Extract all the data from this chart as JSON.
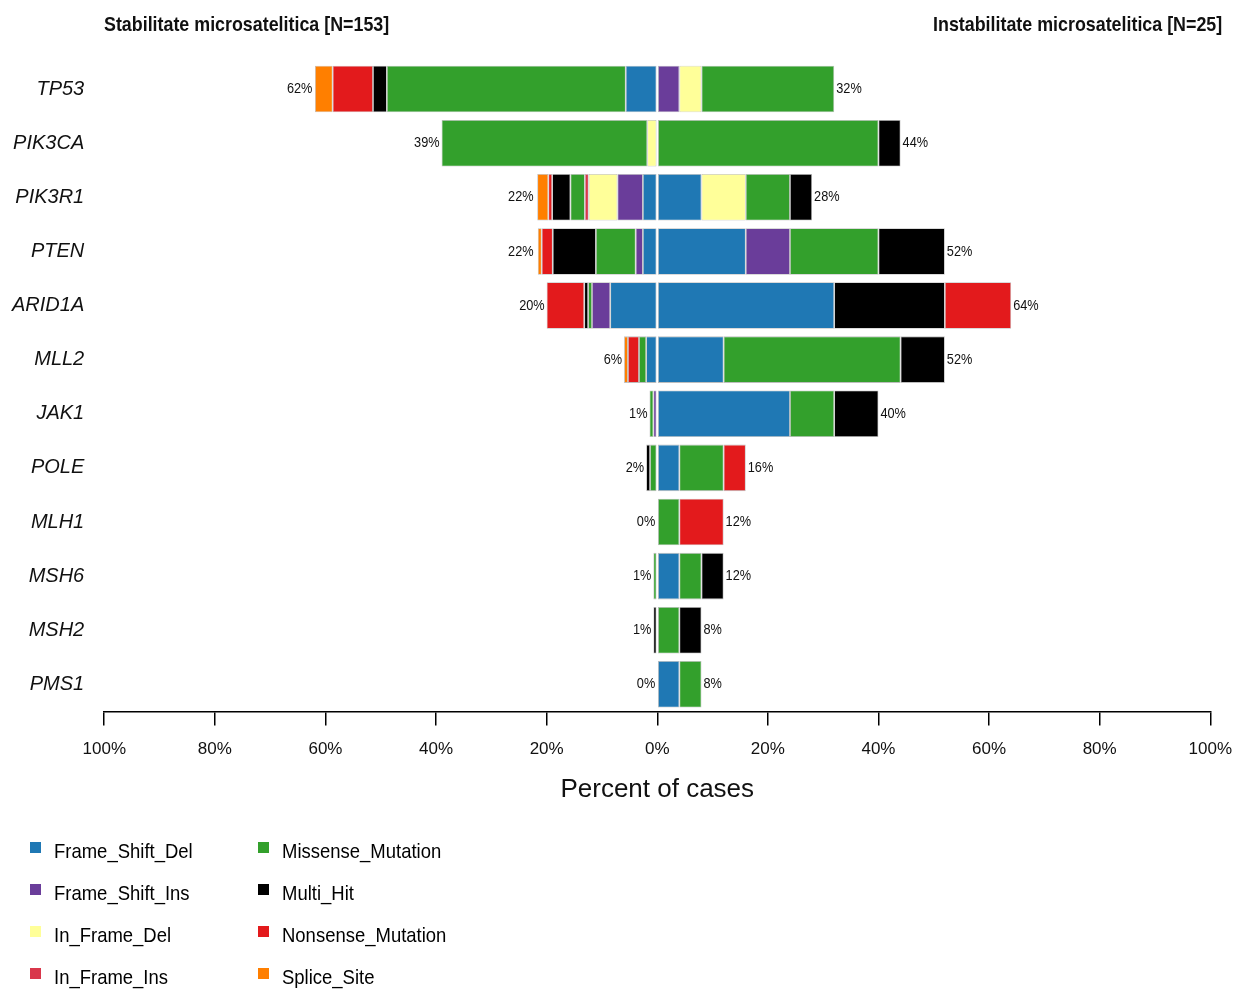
{
  "chart_data": {
    "type": "bar",
    "orientation": "horizontal",
    "stacked": true,
    "title": "Stabilitate microsatelitica [N=153]",
    "subtitle": "Instabilitate microsatelitica [N=25]",
    "xlabel": "Percent of cases",
    "categories": [
      "TP53",
      "PIK3CA",
      "PIK3R1",
      "PTEN",
      "ARID1A",
      "MLL2",
      "JAK1",
      "POLE",
      "MLH1",
      "MSH6",
      "MSH2",
      "PMS1"
    ],
    "xlim": [
      -100,
      100
    ],
    "xticks": [
      {
        "value": -100,
        "label": "100%"
      },
      {
        "value": -80,
        "label": "80%"
      },
      {
        "value": -60,
        "label": "60%"
      },
      {
        "value": -40,
        "label": "40%"
      },
      {
        "value": -20,
        "label": "20%"
      },
      {
        "value": 0,
        "label": "0%"
      },
      {
        "value": 20,
        "label": "20%"
      },
      {
        "value": 40,
        "label": "40%"
      },
      {
        "value": 60,
        "label": "60%"
      },
      {
        "value": 80,
        "label": "80%"
      },
      {
        "value": 100,
        "label": "100%"
      }
    ],
    "grid": false,
    "legend": "bottom left",
    "marker": "square",
    "series": [
      {
        "name": "Frame_Shift_Del",
        "color": "#1f78b4",
        "values": [
          -5.7,
          null,
          -2.6,
          -2.6,
          -8.5,
          -2.0,
          null,
          null,
          null,
          null,
          null,
          null
        ]
      },
      {
        "name": "Frame_Shift_Ins",
        "color": "#6a3d9a",
        "values": [
          null,
          null,
          -4.6,
          -1.3,
          -3.3,
          null,
          -0.7,
          null,
          null,
          null,
          null,
          null
        ]
      },
      {
        "name": "In_Frame_Del",
        "color": "#ffff99",
        "values": [
          null,
          -1.8,
          -5.2,
          null,
          null,
          null,
          null,
          null,
          null,
          null,
          null,
          null
        ]
      },
      {
        "name": "In_Frame_Ins",
        "color": "#d9374b",
        "values": [
          null,
          null,
          -0.7,
          null,
          null,
          null,
          null,
          null,
          null,
          null,
          null,
          null
        ]
      },
      {
        "name": "Missense_Mutation",
        "color": "#33a02c",
        "values": [
          -43.2,
          -37.2,
          -2.6,
          -7.2,
          -0.7,
          -1.3,
          -0.7,
          -1.3,
          null,
          -0.7,
          null,
          null
        ]
      },
      {
        "name": "Multi_Hit",
        "color": "#000000",
        "values": [
          -2.5,
          null,
          -3.3,
          -7.8,
          -0.7,
          null,
          null,
          -0.7,
          null,
          null,
          -0.7,
          null
        ]
      },
      {
        "name": "Nonsense_Mutation",
        "color": "#e31a1c",
        "values": [
          -7.3,
          null,
          -0.7,
          -2.0,
          -6.8,
          -2.0,
          null,
          null,
          null,
          null,
          null,
          null
        ]
      },
      {
        "name": "Splice_Site",
        "color": "#ff7f00",
        "values": [
          -3.2,
          null,
          -2.0,
          -0.7,
          null,
          -0.7,
          null,
          null,
          null,
          null,
          null,
          null
        ]
      },
      {
        "color": "#1f78b4",
        "values": [
          null,
          null,
          8,
          16,
          32,
          12,
          24,
          4,
          null,
          4,
          null,
          4
        ]
      },
      {
        "color": "#6a3d9a",
        "values": [
          4,
          null,
          null,
          8,
          null,
          null,
          null,
          null,
          null,
          null,
          null,
          null
        ]
      },
      {
        "color": "#ffff99",
        "values": [
          4,
          null,
          8,
          null,
          null,
          null,
          null,
          null,
          null,
          null,
          null,
          null
        ]
      },
      {
        "color": "#33a02c",
        "values": [
          24,
          40,
          8,
          16,
          null,
          32,
          8,
          8,
          4,
          4,
          4,
          4
        ]
      },
      {
        "color": "#000000",
        "values": [
          null,
          4,
          4,
          12,
          20,
          8,
          8,
          null,
          null,
          4,
          4,
          null
        ]
      },
      {
        "color": "#e31a1c",
        "values": [
          null,
          null,
          null,
          null,
          12,
          null,
          null,
          4,
          8,
          null,
          null,
          null
        ]
      }
    ],
    "annotations": [
      {
        "text": "62%",
        "x": -62,
        "y": "TP53"
      },
      {
        "text": "32%",
        "x": 32,
        "y": "TP53"
      },
      {
        "text": "39%",
        "x": -39,
        "y": "PIK3CA"
      },
      {
        "text": "44%",
        "x": 44,
        "y": "PIK3CA"
      },
      {
        "text": "22%",
        "x": -22,
        "y": "PIK3R1"
      },
      {
        "text": "28%",
        "x": 28,
        "y": "PIK3R1"
      },
      {
        "text": "22%",
        "x": -22,
        "y": "PTEN"
      },
      {
        "text": "52%",
        "x": 52,
        "y": "PTEN"
      },
      {
        "text": "20%",
        "x": -20,
        "y": "ARID1A"
      },
      {
        "text": "64%",
        "x": 64,
        "y": "ARID1A"
      },
      {
        "text": "6%",
        "x": -6,
        "y": "MLL2"
      },
      {
        "text": "52%",
        "x": 52,
        "y": "MLL2"
      },
      {
        "text": "1%",
        "x": -1.4,
        "y": "JAK1"
      },
      {
        "text": "40%",
        "x": 40,
        "y": "JAK1"
      },
      {
        "text": "2%",
        "x": -2.0,
        "y": "POLE"
      },
      {
        "text": "16%",
        "x": 16,
        "y": "POLE"
      },
      {
        "text": "0%",
        "x": 0,
        "y": "MLH1"
      },
      {
        "text": "12%",
        "x": 12,
        "y": "MLH1"
      },
      {
        "text": "1%",
        "x": -0.7,
        "y": "MSH6"
      },
      {
        "text": "12%",
        "x": 12,
        "y": "MSH6"
      },
      {
        "text": "1%",
        "x": -0.7,
        "y": "MSH2"
      },
      {
        "text": "8%",
        "x": 8,
        "y": "MSH2"
      },
      {
        "text": "0%",
        "x": 0,
        "y": "PMS1"
      },
      {
        "text": "8%",
        "x": 8,
        "y": "PMS1"
      }
    ]
  }
}
